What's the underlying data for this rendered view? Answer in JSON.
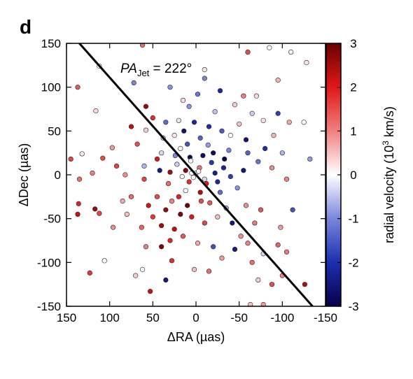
{
  "panel_label": "d",
  "chart_data": {
    "type": "scatter",
    "xlabel": "ΔRA (µas)",
    "ylabel": "ΔDec (µas)",
    "xlim": [
      150,
      -150
    ],
    "ylim": [
      -150,
      150
    ],
    "x_direction": "reversed",
    "x_ticks": [
      150,
      100,
      50,
      0,
      -50,
      -100,
      -150
    ],
    "y_ticks": [
      -150,
      -100,
      -50,
      0,
      50,
      100,
      150
    ],
    "grid": false,
    "colorbar": {
      "label_prefix": "radial velocity (10",
      "label_exp": "3",
      "label_suffix": " km/s)",
      "range": [
        -3,
        3
      ],
      "ticks": [
        3,
        2,
        1,
        0,
        -1,
        -2,
        -3
      ],
      "colormap": [
        "#08004a",
        "#1b2fb0",
        "#7a86dc",
        "#ffffff",
        "#f08080",
        "#e01818",
        "#6a0000"
      ]
    },
    "annotation": {
      "prefix": "PA",
      "subscript": "Jet",
      "value": " = 222°"
    },
    "jet_line": {
      "position_angle_deg": 222,
      "x1": 150,
      "y1": 166.6,
      "x2": -135,
      "y2": -150
    },
    "points_note": "approx. 1000 maser spots; representative sample encoded below",
    "points": [
      {
        "x": 112,
        "y": 124,
        "v": 0.0
      },
      {
        "x": 72,
        "y": 105,
        "v": -1.0
      },
      {
        "x": 137,
        "y": 100,
        "v": 1.4
      },
      {
        "x": 116,
        "y": 73,
        "v": 0.3
      },
      {
        "x": 132,
        "y": 24,
        "v": 0.2
      },
      {
        "x": 145,
        "y": 18,
        "v": 1.6
      },
      {
        "x": 135,
        "y": -5,
        "v": 1.2
      },
      {
        "x": 120,
        "y": 2,
        "v": 1.0
      },
      {
        "x": 97,
        "y": 31,
        "v": 0.8
      },
      {
        "x": 108,
        "y": 19,
        "v": 1.5
      },
      {
        "x": 92,
        "y": 10,
        "v": 1.6
      },
      {
        "x": 136,
        "y": -33,
        "v": 1.9
      },
      {
        "x": 137,
        "y": -45,
        "v": 2.2
      },
      {
        "x": 112,
        "y": -44,
        "v": 1.6
      },
      {
        "x": 106,
        "y": -98,
        "v": 0.0
      },
      {
        "x": 123,
        "y": -112,
        "v": 1.7
      },
      {
        "x": 70,
        "y": -115,
        "v": 0.4
      },
      {
        "x": 62,
        "y": -108,
        "v": 0.0
      },
      {
        "x": 53,
        "y": -133,
        "v": 2.2
      },
      {
        "x": 96,
        "y": -60,
        "v": 0.9
      },
      {
        "x": 117,
        "y": -39,
        "v": 2.6
      },
      {
        "x": 58,
        "y": 51,
        "v": 0.4
      },
      {
        "x": 60,
        "y": 10,
        "v": -0.6
      },
      {
        "x": 40,
        "y": 25,
        "v": -0.3
      },
      {
        "x": 35,
        "y": 60,
        "v": -1.3
      },
      {
        "x": 50,
        "y": 65,
        "v": 1.8
      },
      {
        "x": 45,
        "y": 18,
        "v": 2.0
      },
      {
        "x": 42,
        "y": 5,
        "v": -2.4
      },
      {
        "x": 30,
        "y": 3,
        "v": 2.5
      },
      {
        "x": 32,
        "y": -10,
        "v": 1.2
      },
      {
        "x": 45,
        "y": -25,
        "v": 1.5
      },
      {
        "x": 55,
        "y": -35,
        "v": 2.1
      },
      {
        "x": 63,
        "y": -60,
        "v": 1.3
      },
      {
        "x": 58,
        "y": -82,
        "v": 1.0
      },
      {
        "x": 40,
        "y": -82,
        "v": 2.8
      },
      {
        "x": 25,
        "y": -62,
        "v": 2.3
      },
      {
        "x": 20,
        "y": -25,
        "v": 1.9
      },
      {
        "x": 22,
        "y": 12,
        "v": -0.4
      },
      {
        "x": 18,
        "y": 30,
        "v": 0.1
      },
      {
        "x": 14,
        "y": 50,
        "v": -2.6
      },
      {
        "x": 10,
        "y": 35,
        "v": -1.6
      },
      {
        "x": 7,
        "y": 20,
        "v": -2.8
      },
      {
        "x": 12,
        "y": 5,
        "v": 2.7
      },
      {
        "x": 8,
        "y": -8,
        "v": 1.8
      },
      {
        "x": 5,
        "y": 2,
        "v": 0.0
      },
      {
        "x": 0,
        "y": 2,
        "v": -0.2
      },
      {
        "x": -4,
        "y": 8,
        "v": 1.1
      },
      {
        "x": -8,
        "y": 22,
        "v": -2.7
      },
      {
        "x": -14,
        "y": 34,
        "v": -0.8
      },
      {
        "x": -18,
        "y": 14,
        "v": -1.9
      },
      {
        "x": -22,
        "y": 2,
        "v": -2.3
      },
      {
        "x": -12,
        "y": -10,
        "v": 2.0
      },
      {
        "x": -5,
        "y": -20,
        "v": 2.4
      },
      {
        "x": -16,
        "y": -32,
        "v": 1.4
      },
      {
        "x": -28,
        "y": -20,
        "v": -1.3
      },
      {
        "x": -32,
        "y": 8,
        "v": -2.2
      },
      {
        "x": -38,
        "y": 28,
        "v": -1.0
      },
      {
        "x": -30,
        "y": 50,
        "v": -1.5
      },
      {
        "x": -22,
        "y": 72,
        "v": -0.5
      },
      {
        "x": -28,
        "y": 96,
        "v": -2.1
      },
      {
        "x": -2,
        "y": 92,
        "v": -1.2
      },
      {
        "x": 15,
        "y": 85,
        "v": 0.3
      },
      {
        "x": 30,
        "y": 100,
        "v": -0.9
      },
      {
        "x": -10,
        "y": 110,
        "v": -1.0
      },
      {
        "x": -50,
        "y": 58,
        "v": 0.5
      },
      {
        "x": -55,
        "y": 90,
        "v": 1.0
      },
      {
        "x": -45,
        "y": 80,
        "v": 0.4
      },
      {
        "x": -70,
        "y": 90,
        "v": 0.3
      },
      {
        "x": -95,
        "y": 70,
        "v": -1.8
      },
      {
        "x": -90,
        "y": 45,
        "v": 0.6
      },
      {
        "x": -80,
        "y": 30,
        "v": -2.0
      },
      {
        "x": -60,
        "y": 25,
        "v": -1.4
      },
      {
        "x": -72,
        "y": 15,
        "v": -1.2
      },
      {
        "x": -88,
        "y": 8,
        "v": 0.9
      },
      {
        "x": -100,
        "y": 25,
        "v": -0.6
      },
      {
        "x": -105,
        "y": -5,
        "v": 1.0
      },
      {
        "x": -112,
        "y": -40,
        "v": -1.6
      },
      {
        "x": -98,
        "y": -60,
        "v": 0.8
      },
      {
        "x": -95,
        "y": -80,
        "v": 1.3
      },
      {
        "x": -100,
        "y": -115,
        "v": 1.0
      },
      {
        "x": -88,
        "y": -125,
        "v": 1.5
      },
      {
        "x": -78,
        "y": -90,
        "v": -0.3
      },
      {
        "x": -65,
        "y": -100,
        "v": 1.2
      },
      {
        "x": -52,
        "y": -70,
        "v": 0.9
      },
      {
        "x": -42,
        "y": -55,
        "v": -2.5
      },
      {
        "x": -35,
        "y": -38,
        "v": -0.7
      },
      {
        "x": -58,
        "y": -35,
        "v": 0.9
      },
      {
        "x": -68,
        "y": -55,
        "v": 1.1
      },
      {
        "x": -75,
        "y": -40,
        "v": 1.4
      },
      {
        "x": -48,
        "y": -15,
        "v": -0.9
      },
      {
        "x": -55,
        "y": 5,
        "v": -2.5
      },
      {
        "x": -40,
        "y": -2,
        "v": -1.8
      },
      {
        "x": -25,
        "y": -48,
        "v": 0.5
      },
      {
        "x": -10,
        "y": -55,
        "v": 1.6
      },
      {
        "x": 5,
        "y": -48,
        "v": 2.0
      },
      {
        "x": 15,
        "y": -70,
        "v": 1.4
      },
      {
        "x": -2,
        "y": -78,
        "v": 0.7
      },
      {
        "x": -20,
        "y": -82,
        "v": -1.6
      },
      {
        "x": -30,
        "y": -95,
        "v": 0.8
      },
      {
        "x": -15,
        "y": -110,
        "v": 1.2
      },
      {
        "x": 2,
        "y": -108,
        "v": 0.5
      },
      {
        "x": 28,
        "y": -98,
        "v": 1.8
      },
      {
        "x": 35,
        "y": -120,
        "v": -2.5
      },
      {
        "x": 35,
        "y": -40,
        "v": 2.6
      },
      {
        "x": 28,
        "y": -30,
        "v": 1.0
      },
      {
        "x": 18,
        "y": -45,
        "v": 2.8
      },
      {
        "x": 25,
        "y": 45,
        "v": 0.2
      },
      {
        "x": 38,
        "y": 42,
        "v": -0.5
      },
      {
        "x": 2,
        "y": 60,
        "v": -2.2
      },
      {
        "x": -5,
        "y": 42,
        "v": -1.4
      },
      {
        "x": 20,
        "y": 62,
        "v": -0.2
      },
      {
        "x": -40,
        "y": 45,
        "v": 0.0
      },
      {
        "x": -58,
        "y": 40,
        "v": -2.6
      },
      {
        "x": -65,
        "y": 70,
        "v": -0.4
      },
      {
        "x": -78,
        "y": 62,
        "v": 0.2
      },
      {
        "x": -108,
        "y": 60,
        "v": 0.7
      },
      {
        "x": -125,
        "y": 60,
        "v": 0.0
      },
      {
        "x": -132,
        "y": 18,
        "v": -0.8
      },
      {
        "x": -110,
        "y": 140,
        "v": 0.1
      },
      {
        "x": -128,
        "y": 128,
        "v": 0.2
      },
      {
        "x": -10,
        "y": 120,
        "v": 0.2
      },
      {
        "x": -60,
        "y": 140,
        "v": 1.5
      },
      {
        "x": -95,
        "y": 108,
        "v": 0.6
      },
      {
        "x": -85,
        "y": 145,
        "v": 0.0
      },
      {
        "x": 62,
        "y": 148,
        "v": 1.2
      },
      {
        "x": 8,
        "y": 78,
        "v": -0.9
      },
      {
        "x": 60,
        "y": -5,
        "v": 1.6
      },
      {
        "x": 75,
        "y": -25,
        "v": 1.2
      },
      {
        "x": 80,
        "y": -45,
        "v": 0.5
      },
      {
        "x": 85,
        "y": -30,
        "v": 0.7
      },
      {
        "x": 82,
        "y": 0,
        "v": 0.9
      },
      {
        "x": 68,
        "y": 35,
        "v": 1.5
      },
      {
        "x": 75,
        "y": 55,
        "v": 2.3
      },
      {
        "x": 58,
        "y": 78,
        "v": 2.6
      },
      {
        "x": 3,
        "y": -3,
        "v": 0.0
      },
      {
        "x": -3,
        "y": 4,
        "v": 0.0
      },
      {
        "x": 12,
        "y": -18,
        "v": 0.0
      },
      {
        "x": -10,
        "y": -5,
        "v": -0.3
      },
      {
        "x": 6,
        "y": 16,
        "v": 0.0
      },
      {
        "x": 16,
        "y": -2,
        "v": 0.1
      },
      {
        "x": -20,
        "y": 25,
        "v": -2.8
      },
      {
        "x": -25,
        "y": -8,
        "v": -2.1
      },
      {
        "x": -6,
        "y": -30,
        "v": 1.5
      },
      {
        "x": 10,
        "y": -35,
        "v": 2.9
      },
      {
        "x": 24,
        "y": 22,
        "v": -1.0
      },
      {
        "x": -15,
        "y": 55,
        "v": -2.0
      },
      {
        "x": -33,
        "y": 18,
        "v": -2.9
      },
      {
        "x": 40,
        "y": -58,
        "v": 2.5
      },
      {
        "x": 50,
        "y": -48,
        "v": 1.7
      },
      {
        "x": 30,
        "y": -75,
        "v": 1.9
      },
      {
        "x": -45,
        "y": -85,
        "v": -2.4
      },
      {
        "x": -60,
        "y": -78,
        "v": 1.0
      },
      {
        "x": -72,
        "y": -120,
        "v": 0.4
      },
      {
        "x": -105,
        "y": -88,
        "v": 1.1
      },
      {
        "x": -126,
        "y": -125,
        "v": 2.4
      },
      {
        "x": -63,
        "y": -148,
        "v": 0.5
      },
      {
        "x": -78,
        "y": -148,
        "v": 0.8
      }
    ]
  }
}
